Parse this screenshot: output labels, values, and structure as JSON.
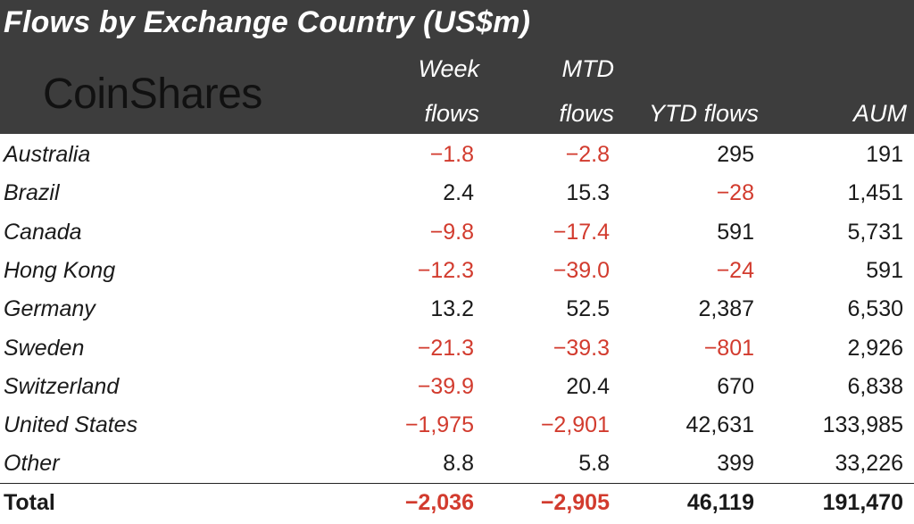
{
  "header": {
    "title": "Flows by Exchange Country (US$m)",
    "logo": "CoinShares",
    "columns": [
      {
        "line1": "Week",
        "line2": "flows"
      },
      {
        "line1": "MTD",
        "line2": "flows"
      },
      {
        "line1": "",
        "line2": "YTD flows"
      },
      {
        "line1": "",
        "line2": "AUM"
      }
    ]
  },
  "colors": {
    "negative": "#d23b2e",
    "header_bg": "#3d3d3d"
  },
  "chart_data": {
    "type": "table",
    "title": "Flows by Exchange Country (US$m)",
    "columns": [
      "Week flows",
      "MTD flows",
      "YTD flows",
      "AUM"
    ],
    "rows": [
      {
        "country": "Australia",
        "week": "-1.8",
        "mtd": "-2.8",
        "ytd": "295",
        "aum": "191"
      },
      {
        "country": "Brazil",
        "week": "2.4",
        "mtd": "15.3",
        "ytd": "-28",
        "aum": "1,451"
      },
      {
        "country": "Canada",
        "week": "-9.8",
        "mtd": "-17.4",
        "ytd": "591",
        "aum": "5,731"
      },
      {
        "country": "Hong Kong",
        "week": "-12.3",
        "mtd": "-39.0",
        "ytd": "-24",
        "aum": "591"
      },
      {
        "country": "Germany",
        "week": "13.2",
        "mtd": "52.5",
        "ytd": "2,387",
        "aum": "6,530"
      },
      {
        "country": "Sweden",
        "week": "-21.3",
        "mtd": "-39.3",
        "ytd": "-801",
        "aum": "2,926"
      },
      {
        "country": "Switzerland",
        "week": "-39.9",
        "mtd": "20.4",
        "ytd": "670",
        "aum": "6,838"
      },
      {
        "country": "United States",
        "week": "-1,975",
        "mtd": "-2,901",
        "ytd": "42,631",
        "aum": "133,985"
      },
      {
        "country": "Other",
        "week": "8.8",
        "mtd": "5.8",
        "ytd": "399",
        "aum": "33,226"
      }
    ],
    "total": {
      "country": "Total",
      "week": "-2,036",
      "mtd": "-2,905",
      "ytd": "46,119",
      "aum": "191,470"
    }
  }
}
